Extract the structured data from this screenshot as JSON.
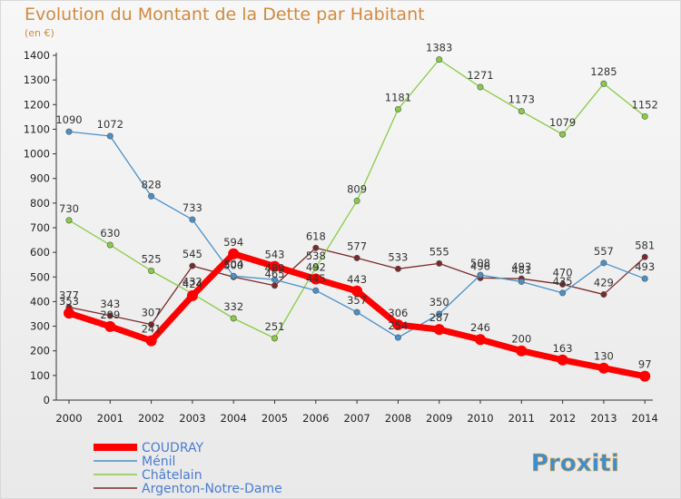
{
  "title": "Evolution du Montant de la Dette par Habitant",
  "subtitle": "(en €)",
  "logo": {
    "text": "Proxiti"
  },
  "chart_data": {
    "type": "line",
    "x": [
      "2000",
      "2001",
      "2002",
      "2003",
      "2004",
      "2005",
      "2006",
      "2007",
      "2008",
      "2009",
      "2010",
      "2011",
      "2012",
      "2013",
      "2014"
    ],
    "ylim": [
      0,
      1400
    ],
    "yticks": [
      0,
      100,
      200,
      300,
      400,
      500,
      600,
      700,
      800,
      900,
      1000,
      1100,
      1200,
      1300,
      1400
    ],
    "grid": false,
    "legend_position": "bottom-left",
    "series": [
      {
        "name": "COUDRAY",
        "color": "#ff0000",
        "values": [
          353,
          299,
          241,
          424,
          594,
          543,
          492,
          443,
          306,
          287,
          246,
          200,
          163,
          130,
          97
        ]
      },
      {
        "name": "Ménil",
        "color": "#4a90c8",
        "values": [
          1090,
          1072,
          828,
          733,
          504,
          489,
          445,
          357,
          254,
          350,
          508,
          481,
          435,
          557,
          493
        ]
      },
      {
        "name": "Châtelain",
        "color": "#88cc44",
        "values": [
          730,
          630,
          525,
          432,
          332,
          251,
          538,
          809,
          1181,
          1383,
          1271,
          1173,
          1079,
          1285,
          1152
        ]
      },
      {
        "name": "Argenton-Notre-Dame",
        "color": "#7a2a2a",
        "values": [
          377,
          343,
          307,
          545,
          500,
          465,
          618,
          577,
          533,
          555,
          496,
          493,
          470,
          429,
          581
        ]
      }
    ]
  }
}
